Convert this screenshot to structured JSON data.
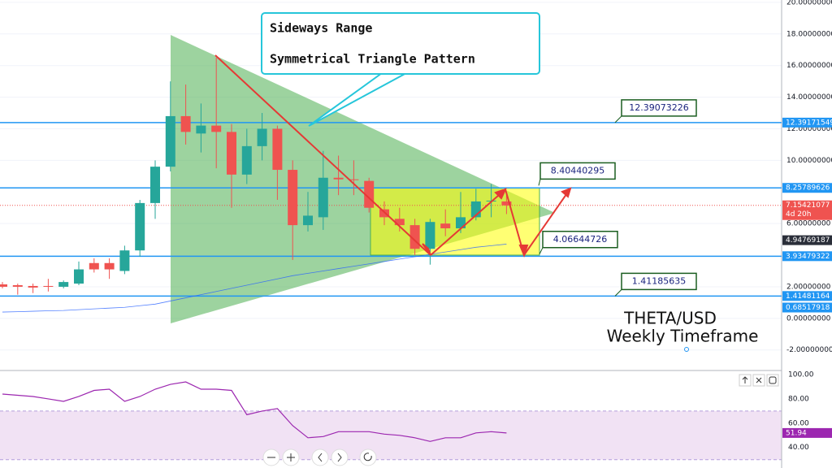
{
  "chart_data": {
    "type": "candlestick",
    "up_color": "#26a69a",
    "down_color": "#ef5350",
    "open": [
      2.15,
      2.1,
      2.05,
      2.05,
      2.0,
      2.2,
      3.5,
      3.5,
      3.0,
      4.3,
      7.3,
      9.6,
      12.8,
      11.7,
      12.2,
      11.8,
      9.1,
      10.9,
      12.0,
      9.4,
      5.9,
      6.4,
      8.9,
      8.8,
      8.7,
      6.9,
      6.3,
      5.9,
      4.4,
      6.0,
      5.7,
      6.4,
      7.4,
      7.4
    ],
    "high": [
      2.3,
      2.2,
      2.2,
      2.5,
      2.4,
      3.6,
      3.8,
      3.8,
      4.6,
      7.5,
      10.0,
      15.0,
      14.8,
      13.6,
      16.5,
      12.3,
      12.0,
      13.0,
      12.2,
      10.0,
      8.0,
      10.6,
      10.3,
      10.0,
      8.9,
      7.4,
      7.0,
      6.3,
      6.3,
      6.9,
      8.0,
      8.2,
      8.5,
      7.8
    ],
    "low": [
      1.9,
      1.5,
      1.6,
      1.7,
      1.9,
      2.1,
      2.9,
      2.5,
      2.8,
      3.9,
      6.3,
      9.3,
      11.0,
      10.5,
      9.5,
      7.0,
      8.5,
      10.0,
      7.5,
      3.7,
      5.5,
      5.6,
      7.8,
      7.8,
      6.7,
      5.9,
      5.5,
      4.0,
      3.4,
      5.2,
      5.4,
      6.2,
      6.4,
      6.6
    ],
    "close": [
      2.0,
      2.0,
      1.95,
      2.0,
      2.3,
      3.1,
      3.1,
      3.1,
      4.3,
      7.3,
      9.6,
      12.8,
      11.8,
      12.2,
      11.8,
      9.1,
      10.9,
      12.0,
      9.4,
      5.9,
      6.5,
      8.9,
      8.8,
      8.75,
      7.0,
      6.4,
      5.9,
      4.4,
      6.1,
      5.7,
      6.4,
      7.4,
      7.45,
      7.15
    ],
    "ma": {
      "color": "#2962ff",
      "values": [
        0.4,
        0.42,
        0.45,
        0.48,
        0.5,
        0.55,
        0.6,
        0.65,
        0.7,
        0.8,
        0.9,
        1.1,
        1.3,
        1.5,
        1.7,
        1.9,
        2.1,
        2.3,
        2.5,
        2.7,
        2.85,
        3.0,
        3.15,
        3.3,
        3.45,
        3.6,
        3.75,
        3.9,
        4.05,
        4.2,
        4.35,
        4.5,
        4.6,
        4.7
      ]
    },
    "ylim": [
      -3.3,
      20.15
    ],
    "yticks": [
      {
        "value": 20,
        "label": "20.00000000"
      },
      {
        "value": 18,
        "label": "18.00000000"
      },
      {
        "value": 16,
        "label": "16.00000000"
      },
      {
        "value": 14,
        "label": "14.00000000"
      },
      {
        "value": 12,
        "label": "12.00000000"
      },
      {
        "value": 10,
        "label": "10.00000000"
      },
      {
        "value": 6,
        "label": "6.00000000"
      },
      {
        "value": 2,
        "label": "2.00000000"
      },
      {
        "value": 0,
        "label": "0.00000000"
      },
      {
        "value": -2,
        "label": "-2.00000000"
      }
    ],
    "levels": [
      12.39171549,
      8.25789626,
      3.93479322,
      1.41481164
    ],
    "level_color": "#2196f3",
    "price_labels": [
      {
        "value": 12.39171549,
        "color": "#2196f3"
      },
      {
        "value": 8.25789626,
        "color": "#2196f3"
      },
      {
        "value": 7.15421077,
        "color": "#ef5350",
        "note": "4d 20h"
      },
      {
        "value": 4.94769187,
        "color": "#2a2e39"
      },
      {
        "value": 3.93479322,
        "color": "#2196f3"
      },
      {
        "value": 1.41481164,
        "color": "#2196f3"
      },
      {
        "value": 0.68517918,
        "color": "#2196f3"
      }
    ],
    "callouts": [
      12.39073226,
      8.40440295,
      4.06644726,
      1.41185635
    ],
    "annotations": [
      "Sideways Range",
      "Symmetrical Triangle Pattern"
    ],
    "title": "THETA/USD",
    "subtitle": "Weekly Timeframe",
    "rsi": {
      "color": "#9c27b0",
      "band": [
        30,
        70
      ],
      "ylim": [
        23.1,
        103.4
      ],
      "yticks": [
        {
          "value": 100,
          "label": "100.00"
        },
        {
          "value": 80,
          "label": "80.00"
        },
        {
          "value": 60,
          "label": "60.00"
        },
        {
          "value": 40,
          "label": "40.00"
        }
      ],
      "values": [
        84,
        83,
        82,
        80,
        78,
        82,
        87,
        88,
        78,
        82,
        88,
        92,
        94,
        88,
        88,
        87,
        67,
        70,
        72,
        58,
        48,
        49,
        53,
        53,
        53,
        51,
        50,
        48,
        45,
        48,
        48,
        52,
        53,
        51.94
      ]
    }
  }
}
